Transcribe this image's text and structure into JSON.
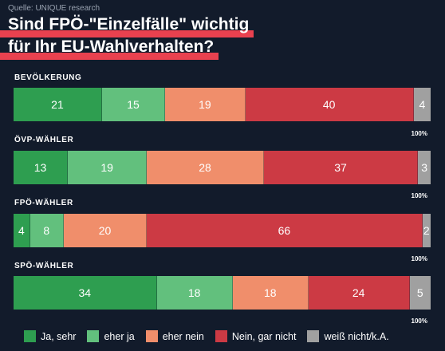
{
  "source": "Quelle: UNIQUE research",
  "title_lines": [
    "Sind FPÖ-\"Einzelfälle\" wichtig",
    "für Ihr EU-Wahlverhalten?"
  ],
  "colors": {
    "Ja, sehr": "#2e9e50",
    "eher ja": "#62c07d",
    "eher nein": "#f08e6b",
    "Nein, gar nicht": "#cc3a44",
    "weiß nicht/k.A.": "#a0a0a0"
  },
  "chart_data": {
    "type": "bar",
    "orientation": "horizontal",
    "stacked": true,
    "title": "Sind FPÖ-\"Einzelfälle\" wichtig für Ihr EU-Wahlverhalten?",
    "categories": [
      "BEVÖLKERUNG",
      "ÖVP-WÄHLER",
      "FPÖ-WÄHLER",
      "SPÖ-WÄHLER"
    ],
    "series": [
      {
        "name": "Ja, sehr",
        "values": [
          21,
          13,
          4,
          34
        ]
      },
      {
        "name": "eher ja",
        "values": [
          15,
          19,
          8,
          18
        ]
      },
      {
        "name": "eher nein",
        "values": [
          19,
          28,
          20,
          18
        ]
      },
      {
        "name": "Nein, gar nicht",
        "values": [
          40,
          37,
          66,
          24
        ]
      },
      {
        "name": "weiß nicht/k.A.",
        "values": [
          4,
          3,
          2,
          5
        ]
      }
    ],
    "totals": [
      "100%",
      "100%",
      "100%",
      "100%"
    ],
    "legend_position": "bottom"
  }
}
